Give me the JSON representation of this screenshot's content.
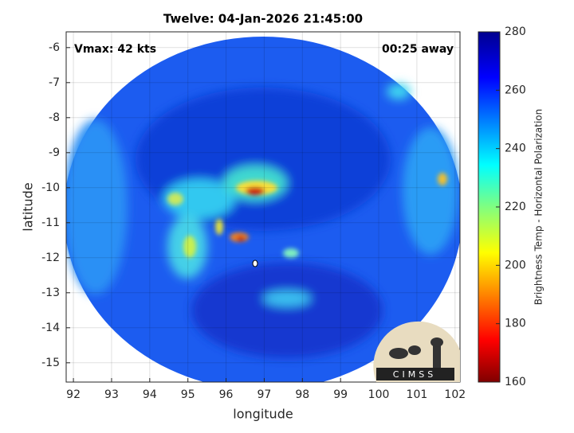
{
  "chart_data": {
    "type": "image-map",
    "title": "Twelve: 04-Jan-2026 21:45:00",
    "annotations": [
      "Vmax: 42 kts",
      "00:25 away"
    ],
    "x_label": "longitude",
    "y_label": "latitude",
    "xlim": [
      91.81,
      102.13
    ],
    "xticks": [
      92,
      93,
      94,
      95,
      96,
      97,
      98,
      99,
      100,
      101,
      102
    ],
    "ylim": [
      -15.55,
      -5.55
    ],
    "yticks": [
      -15,
      -14,
      -13,
      -12,
      -11,
      -10,
      -9,
      -8,
      -7,
      -6
    ],
    "grid": true,
    "colorbar": {
      "label": "Brightness Temp - Horizontal Polarization",
      "lim": [
        160,
        280
      ],
      "ticks": [
        160,
        180,
        200,
        220,
        240,
        260,
        280
      ]
    },
    "logo": "CIMSS"
  }
}
